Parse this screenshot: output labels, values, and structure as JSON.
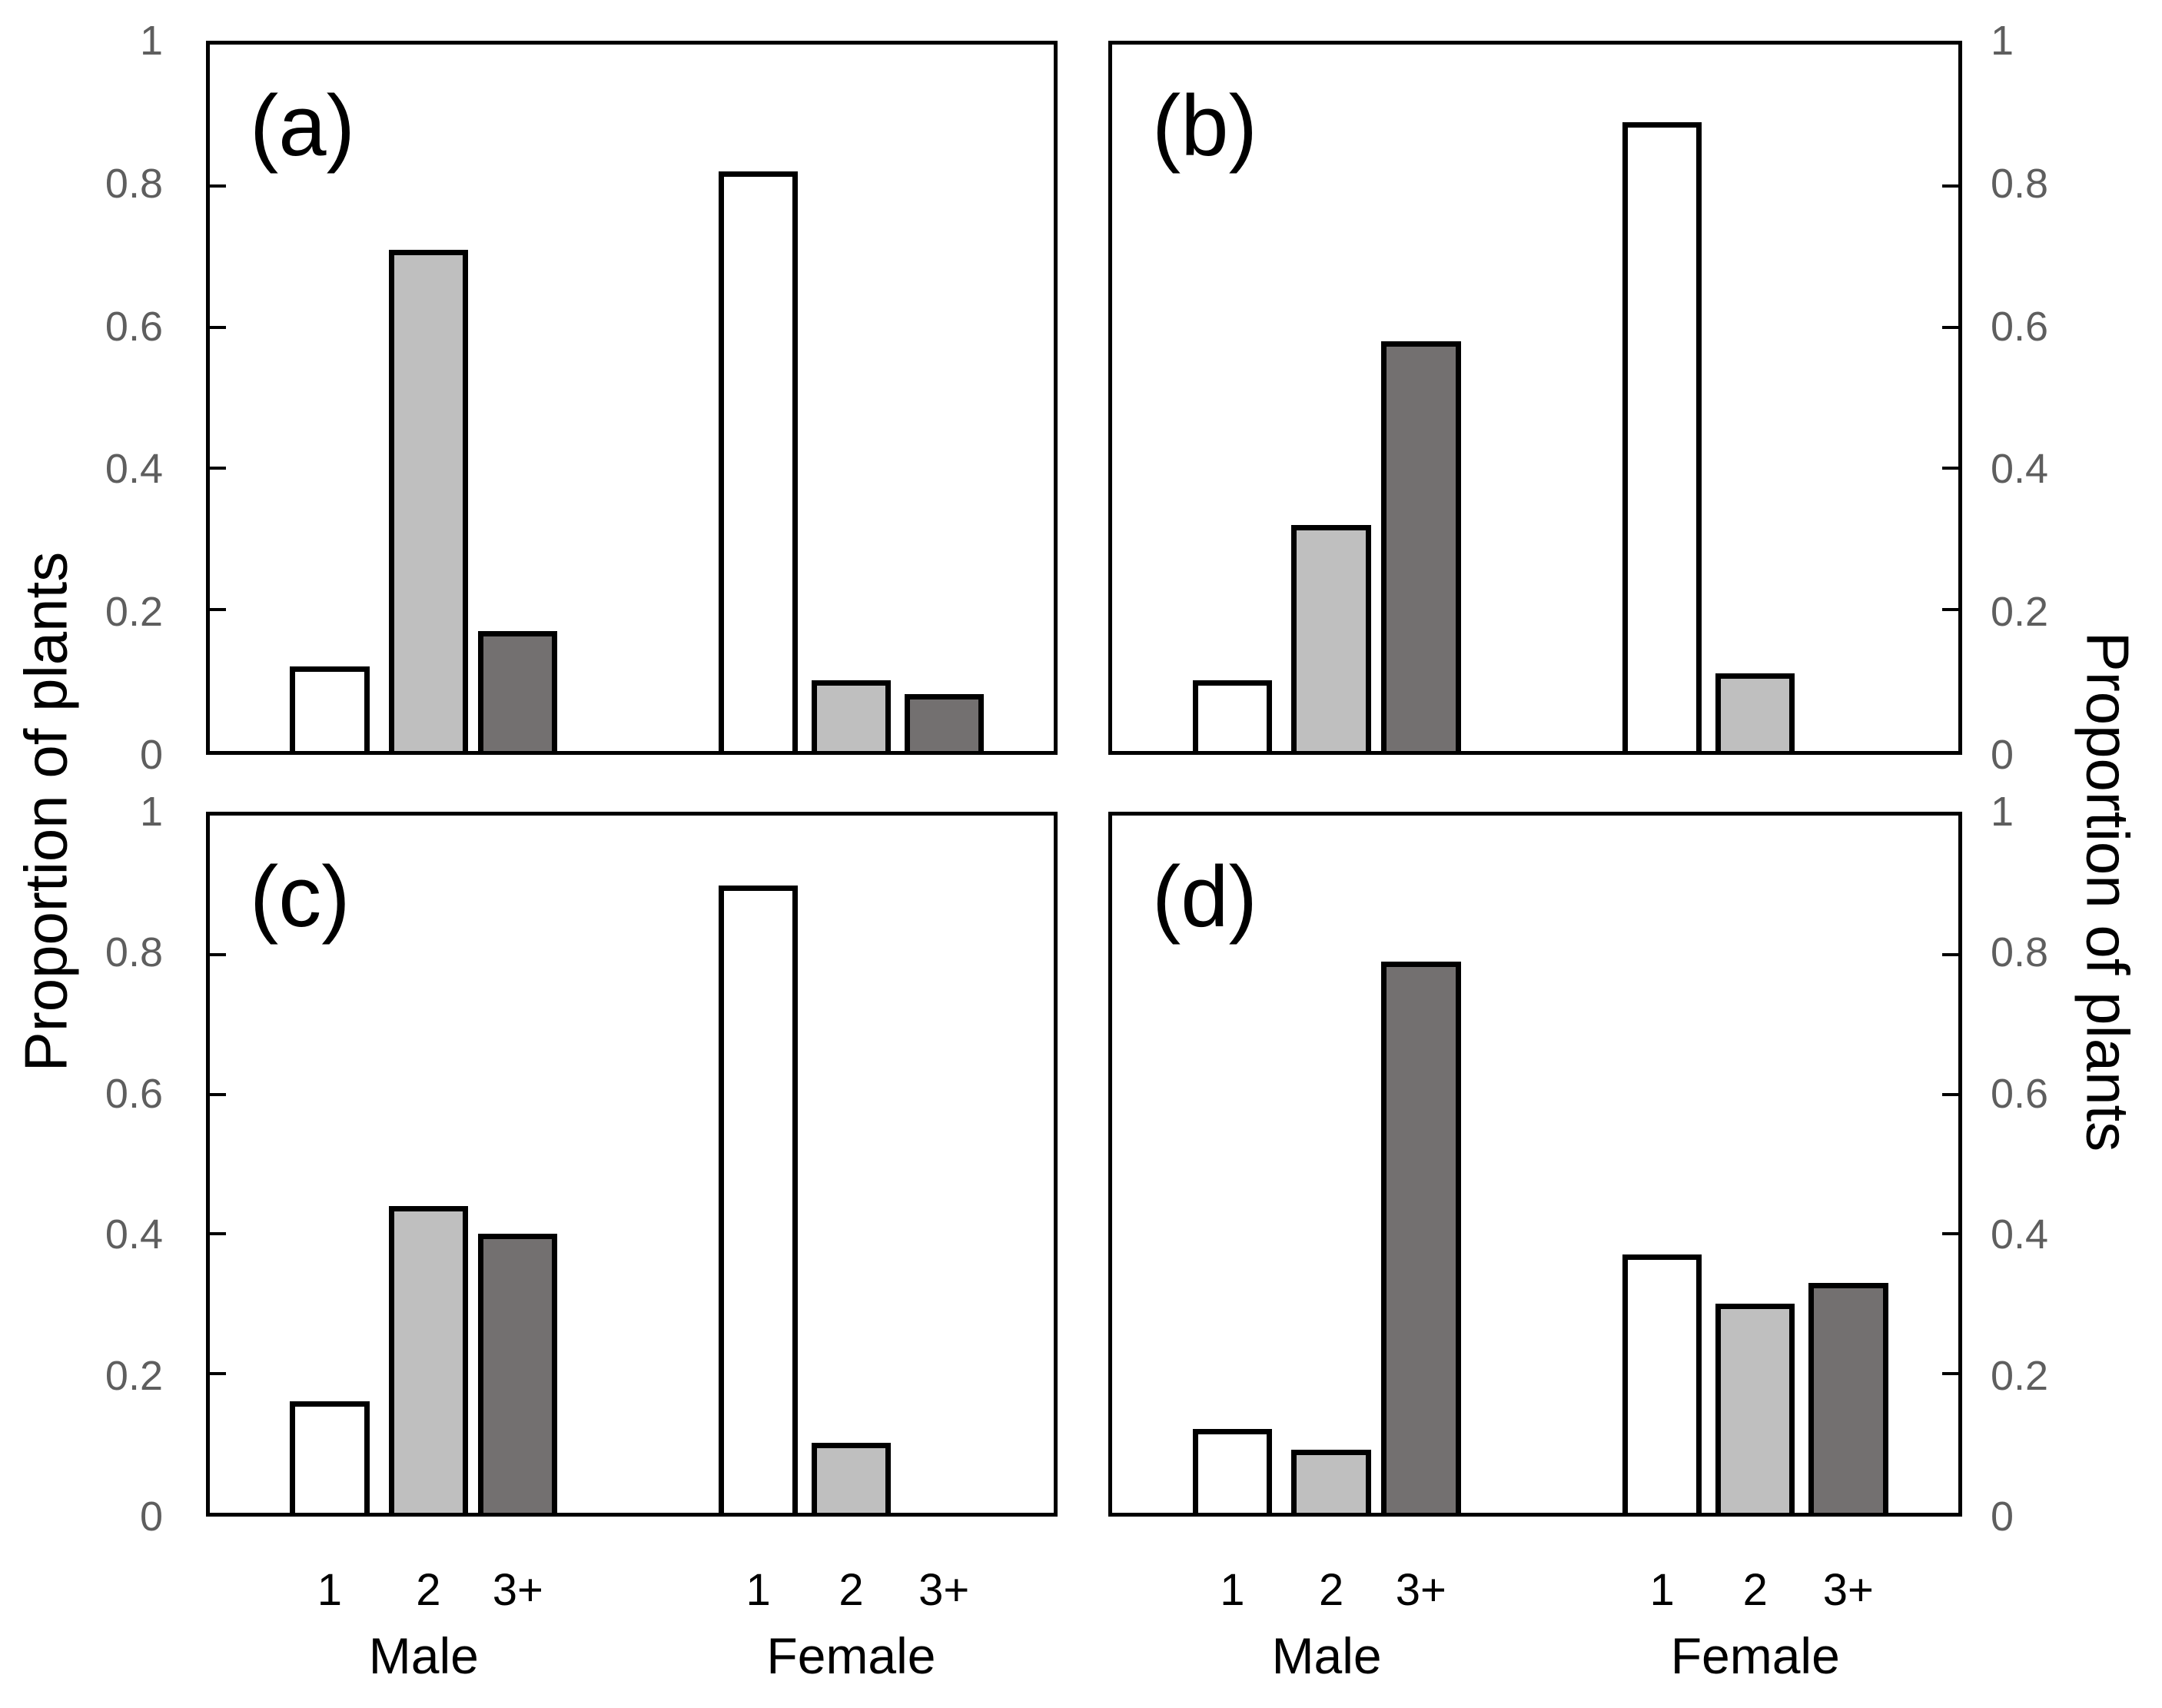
{
  "figure": {
    "ylabel_left": "Proportion of plants",
    "ylabel_right": "Proportion of plants",
    "y_tick_labels": [
      "1",
      "0.8",
      "0.6",
      "0.4",
      "0.2",
      "0"
    ],
    "colors": {
      "background": "#ffffff",
      "axis_line": "#000000",
      "tick_text": "#5e5e5e",
      "label_text": "#000000",
      "bar_white": "#ffffff",
      "bar_light_gray": "#bfbfbf",
      "bar_dark_gray": "#737070"
    }
  },
  "x_axis": {
    "tick_labels": [
      "1",
      "2",
      "3+"
    ],
    "group_labels": [
      "Male",
      "Female"
    ]
  },
  "chart_data": [
    {
      "type": "bar",
      "panel": "(a)",
      "categories": [
        "1",
        "2",
        "3+"
      ],
      "groups": [
        "Male",
        "Female"
      ],
      "series": [
        {
          "name": "Male",
          "values": [
            0.12,
            0.71,
            0.17
          ]
        },
        {
          "name": "Female",
          "values": [
            0.82,
            0.1,
            0.08
          ]
        }
      ],
      "bar_fills": [
        "white",
        "light-gray",
        "dark-gray"
      ],
      "ylabel": "Proportion of plants",
      "ylim": [
        0,
        1
      ],
      "grid": false,
      "legend": false
    },
    {
      "type": "bar",
      "panel": "(b)",
      "categories": [
        "1",
        "2",
        "3+"
      ],
      "groups": [
        "Male",
        "Female"
      ],
      "series": [
        {
          "name": "Male",
          "values": [
            0.1,
            0.32,
            0.58
          ]
        },
        {
          "name": "Female",
          "values": [
            0.89,
            0.11,
            0
          ]
        }
      ],
      "bar_fills": [
        "white",
        "light-gray",
        "dark-gray"
      ],
      "ylabel": "Proportion of plants",
      "ylim": [
        0,
        1
      ],
      "grid": false,
      "legend": false
    },
    {
      "type": "bar",
      "panel": "(c)",
      "categories": [
        "1",
        "2",
        "3+"
      ],
      "groups": [
        "Male",
        "Female"
      ],
      "series": [
        {
          "name": "Male",
          "values": [
            0.16,
            0.44,
            0.4
          ]
        },
        {
          "name": "Female",
          "values": [
            0.9,
            0.1,
            0
          ]
        }
      ],
      "bar_fills": [
        "white",
        "light-gray",
        "dark-gray"
      ],
      "ylabel": "Proportion of plants",
      "ylim": [
        0,
        1
      ],
      "grid": false,
      "legend": false
    },
    {
      "type": "bar",
      "panel": "(d)",
      "categories": [
        "1",
        "2",
        "3+"
      ],
      "groups": [
        "Male",
        "Female"
      ],
      "series": [
        {
          "name": "Male",
          "values": [
            0.12,
            0.09,
            0.79
          ]
        },
        {
          "name": "Female",
          "values": [
            0.37,
            0.3,
            0.33
          ]
        }
      ],
      "bar_fills": [
        "white",
        "light-gray",
        "dark-gray"
      ],
      "ylabel": "Proportion of plants",
      "ylim": [
        0,
        1
      ],
      "grid": false,
      "legend": false
    }
  ]
}
